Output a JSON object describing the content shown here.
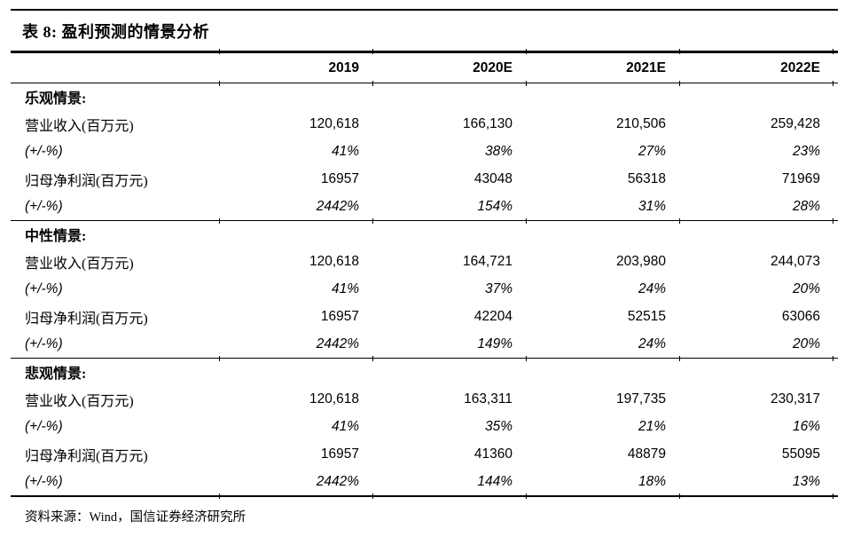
{
  "page": {
    "title": "表 8: 盈利预测的情景分析",
    "source": "资料来源：Wind，国信证券经济研究所",
    "text_color": "#000000",
    "background_color": "#ffffff",
    "rule_color": "#000000"
  },
  "table": {
    "columns": [
      "2019",
      "2020E",
      "2021E",
      "2022E"
    ],
    "groups": [
      {
        "name": "乐观情景:",
        "rows": [
          {
            "label": "营业收入(百万元)",
            "values": [
              "120,618",
              "166,130",
              "210,506",
              "259,428"
            ]
          },
          {
            "label": "(+/-%)",
            "values": [
              "41%",
              "38%",
              "27%",
              "23%"
            ]
          },
          {
            "label": "归母净利润(百万元)",
            "values": [
              "16957",
              "43048",
              "56318",
              "71969"
            ]
          },
          {
            "label": "(+/-%)",
            "values": [
              "2442%",
              "154%",
              "31%",
              "28%"
            ]
          }
        ]
      },
      {
        "name": "中性情景:",
        "rows": [
          {
            "label": "营业收入(百万元)",
            "values": [
              "120,618",
              "164,721",
              "203,980",
              "244,073"
            ]
          },
          {
            "label": "(+/-%)",
            "values": [
              "41%",
              "37%",
              "24%",
              "20%"
            ]
          },
          {
            "label": "归母净利润(百万元)",
            "values": [
              "16957",
              "42204",
              "52515",
              "63066"
            ]
          },
          {
            "label": "(+/-%)",
            "values": [
              "2442%",
              "149%",
              "24%",
              "20%"
            ]
          }
        ]
      },
      {
        "name": "悲观情景:",
        "rows": [
          {
            "label": "营业收入(百万元)",
            "values": [
              "120,618",
              "163,311",
              "197,735",
              "230,317"
            ]
          },
          {
            "label": "(+/-%)",
            "values": [
              "41%",
              "35%",
              "21%",
              "16%"
            ]
          },
          {
            "label": "归母净利润(百万元)",
            "values": [
              "16957",
              "41360",
              "48879",
              "55095"
            ]
          },
          {
            "label": "(+/-%)",
            "values": [
              "2442%",
              "144%",
              "18%",
              "13%"
            ]
          }
        ]
      }
    ]
  }
}
